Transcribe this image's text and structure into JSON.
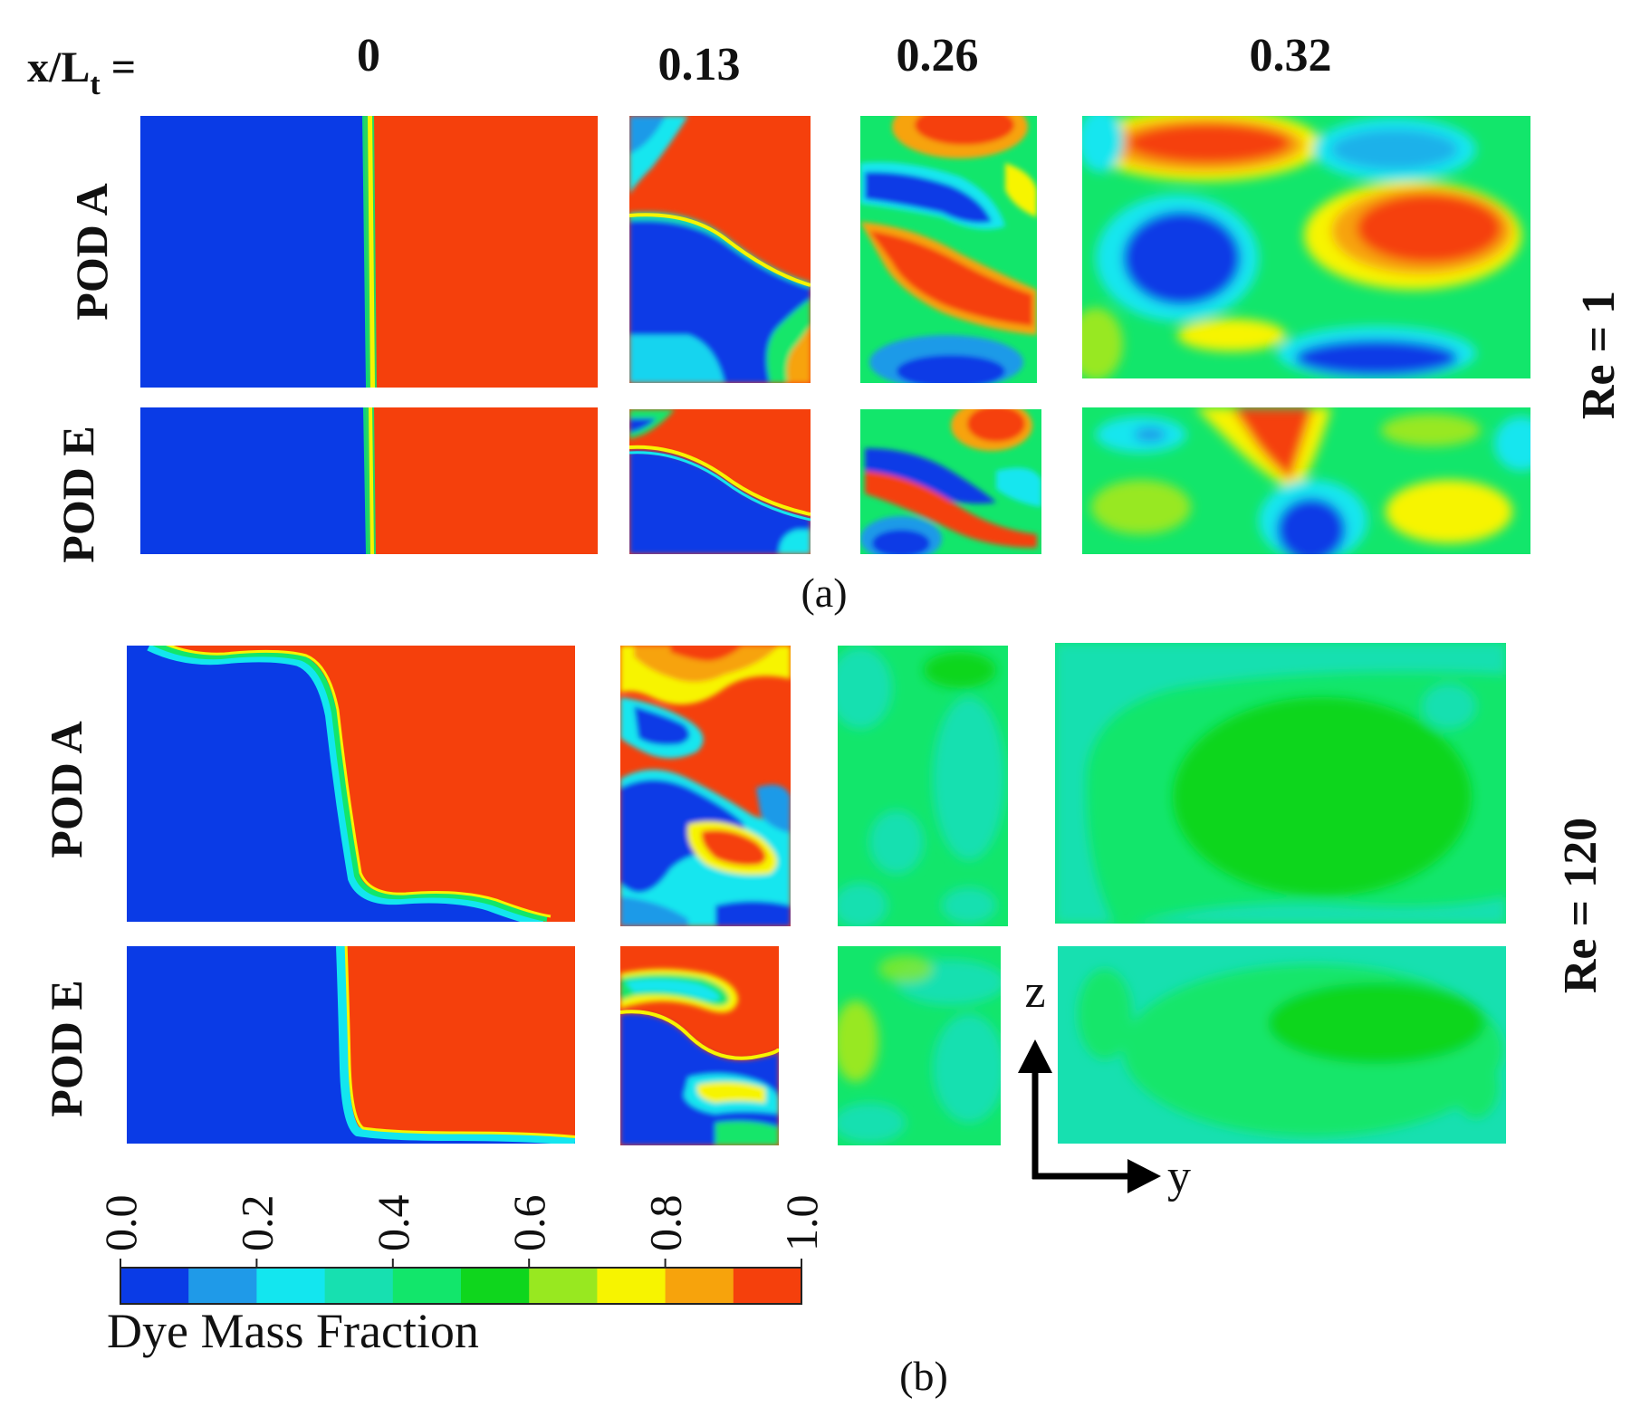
{
  "header": {
    "xlabel_main": "x/L",
    "xlabel_sub": "t",
    "xlabel_eq": " ="
  },
  "columns": [
    "0",
    "0.13",
    "0.26",
    "0.32"
  ],
  "sections": [
    {
      "id": "a",
      "label": "(a)",
      "re_label": "Re = 1",
      "rows": [
        {
          "label": "POD A"
        },
        {
          "label": "POD E"
        }
      ]
    },
    {
      "id": "b",
      "label": "(b)",
      "re_label": "Re = 120",
      "rows": [
        {
          "label": "POD A"
        },
        {
          "label": "POD E"
        }
      ]
    }
  ],
  "colorbar": {
    "title": "Dye Mass Fraction",
    "ticks": [
      "0.0",
      "0.2",
      "0.4",
      "0.6",
      "0.8",
      "1.0"
    ],
    "range": [
      0.0,
      1.0
    ],
    "levels": 10,
    "colors": [
      "#0a3be6",
      "#1f9ae8",
      "#13e6ef",
      "#17e0b0",
      "#12e66b",
      "#0fd61d",
      "#98e820",
      "#f7f400",
      "#f7a30c",
      "#f5400c"
    ]
  },
  "axes": {
    "z_label": "z",
    "y_label": "y"
  },
  "colors": {
    "blue": "#0a3be6",
    "lightblue": "#1f9ae8",
    "cyan": "#13e6ef",
    "aqua": "#17e0b0",
    "teal": "#12e66b",
    "green": "#0fd61d",
    "lime": "#98e820",
    "yellow": "#f7f400",
    "orange": "#f7a30c",
    "red": "#f5400c"
  }
}
